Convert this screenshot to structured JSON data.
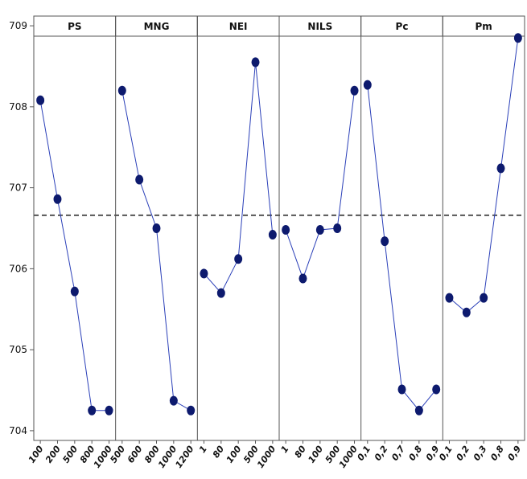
{
  "chart_data": {
    "type": "line",
    "color": "#2a3fb8",
    "marker_color": "#0d1a6e",
    "ylim": [
      703.88,
      709.12
    ],
    "yticks": [
      704,
      705,
      706,
      707,
      708,
      709
    ],
    "reference_line": 706.66,
    "panels": [
      {
        "title": "PS",
        "categories": [
          "100",
          "200",
          "500",
          "800",
          "1000"
        ],
        "values": [
          708.08,
          706.86,
          705.72,
          704.25,
          704.25
        ]
      },
      {
        "title": "MNG",
        "categories": [
          "500",
          "600",
          "800",
          "1000",
          "1200"
        ],
        "values": [
          708.2,
          707.1,
          706.5,
          704.37,
          704.25
        ]
      },
      {
        "title": "NEI",
        "categories": [
          "1",
          "80",
          "100",
          "500",
          "1000"
        ],
        "values": [
          705.94,
          705.7,
          706.12,
          708.55,
          706.42
        ]
      },
      {
        "title": "NILS",
        "categories": [
          "1",
          "80",
          "100",
          "500",
          "1000"
        ],
        "values": [
          706.48,
          705.88,
          706.48,
          706.5,
          708.2
        ]
      },
      {
        "title": "Pc",
        "categories": [
          "0,1",
          "0,2",
          "0,7",
          "0,8",
          "0,9"
        ],
        "values": [
          708.27,
          706.34,
          704.51,
          704.25,
          704.51
        ]
      },
      {
        "title": "Pm",
        "categories": [
          "0,1",
          "0,2",
          "0,3",
          "0,8",
          "0,9"
        ],
        "values": [
          705.64,
          705.46,
          705.64,
          707.24,
          708.85
        ]
      }
    ]
  }
}
